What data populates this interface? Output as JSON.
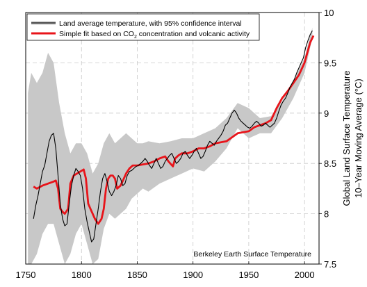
{
  "chart_data": {
    "type": "line",
    "title": "",
    "xlabel": "",
    "ylabel": "Global Land Surface Temperature",
    "ylabel2": "10–Year Moving Average (°C)",
    "xlim": [
      1750,
      2013
    ],
    "ylim": [
      7.5,
      10
    ],
    "x_ticks": [
      1750,
      1800,
      1850,
      1900,
      1950,
      2000
    ],
    "y_ticks": [
      7.5,
      8,
      8.5,
      9,
      9.5,
      10
    ],
    "x_tick_labels": [
      "1750",
      "1800",
      "1850",
      "1900",
      "1950",
      "2000"
    ],
    "y_tick_labels": [
      "7.5",
      "8",
      "8.5",
      "9",
      "9.5",
      "10"
    ],
    "grid": true,
    "legend_position": "top-left",
    "annotation": "Berkeley Earth Surface Temperature",
    "legend": {
      "black_label": "Land average temperature, with 95% confidence interval",
      "red_label_prefix": "Simple fit based on CO",
      "red_label_sub": "2",
      "red_label_suffix": " concentration and volcanic activity"
    },
    "colors": {
      "average": "#000000",
      "band": "#c8c8c8",
      "fit": "#e8141a",
      "grid": "#c8c8c8"
    },
    "series": [
      {
        "key": "average",
        "x": [
          1757,
          1759,
          1761,
          1763,
          1765,
          1767,
          1769,
          1771,
          1773,
          1775,
          1777,
          1779,
          1781,
          1783,
          1785,
          1787,
          1789,
          1791,
          1793,
          1795,
          1797,
          1799,
          1801,
          1803,
          1805,
          1807,
          1809,
          1811,
          1813,
          1815,
          1817,
          1819,
          1821,
          1823,
          1825,
          1827,
          1829,
          1831,
          1833,
          1835,
          1837,
          1839,
          1841,
          1843,
          1845,
          1847,
          1849,
          1851,
          1853,
          1855,
          1857,
          1859,
          1861,
          1863,
          1865,
          1867,
          1869,
          1871,
          1873,
          1875,
          1877,
          1879,
          1881,
          1883,
          1885,
          1887,
          1889,
          1891,
          1893,
          1895,
          1897,
          1899,
          1901,
          1903,
          1905,
          1907,
          1909,
          1911,
          1913,
          1915,
          1917,
          1919,
          1921,
          1923,
          1925,
          1927,
          1929,
          1931,
          1933,
          1935,
          1937,
          1939,
          1941,
          1943,
          1945,
          1947,
          1949,
          1951,
          1953,
          1955,
          1957,
          1959,
          1961,
          1963,
          1965,
          1967,
          1969,
          1971,
          1973,
          1975,
          1977,
          1979,
          1981,
          1983,
          1985,
          1987,
          1989,
          1991,
          1993,
          1995,
          1997,
          1999,
          2001,
          2003,
          2005,
          2007
        ],
        "y": [
          7.95,
          8.08,
          8.18,
          8.3,
          8.42,
          8.48,
          8.6,
          8.72,
          8.78,
          8.8,
          8.65,
          8.38,
          8.1,
          7.95,
          7.88,
          7.9,
          8.1,
          8.28,
          8.38,
          8.45,
          8.42,
          8.38,
          8.25,
          8.05,
          7.92,
          7.82,
          7.72,
          7.75,
          7.9,
          8.05,
          8.22,
          8.35,
          8.4,
          8.32,
          8.22,
          8.18,
          8.22,
          8.28,
          8.38,
          8.35,
          8.28,
          8.3,
          8.38,
          8.42,
          8.43,
          8.45,
          8.47,
          8.48,
          8.5,
          8.52,
          8.55,
          8.52,
          8.48,
          8.45,
          8.5,
          8.55,
          8.5,
          8.45,
          8.47,
          8.52,
          8.55,
          8.58,
          8.6,
          8.55,
          8.5,
          8.52,
          8.55,
          8.6,
          8.62,
          8.58,
          8.55,
          8.58,
          8.62,
          8.65,
          8.6,
          8.55,
          8.57,
          8.62,
          8.68,
          8.72,
          8.7,
          8.68,
          8.72,
          8.75,
          8.78,
          8.82,
          8.88,
          8.9,
          8.95,
          9.0,
          9.03,
          9.0,
          8.95,
          8.92,
          8.9,
          8.88,
          8.86,
          8.85,
          8.87,
          8.9,
          8.92,
          8.9,
          8.87,
          8.88,
          8.9,
          8.88,
          8.86,
          8.88,
          8.9,
          8.95,
          9.02,
          9.08,
          9.12,
          9.15,
          9.2,
          9.26,
          9.3,
          9.34,
          9.4,
          9.45,
          9.5,
          9.55,
          9.65,
          9.72,
          9.78,
          9.82
        ]
      },
      {
        "key": "band",
        "x": [
          1752,
          1755,
          1760,
          1765,
          1770,
          1775,
          1780,
          1785,
          1790,
          1795,
          1800,
          1805,
          1810,
          1815,
          1820,
          1825,
          1830,
          1835,
          1840,
          1845,
          1850,
          1855,
          1860,
          1870,
          1880,
          1890,
          1900,
          1910,
          1920,
          1930,
          1940,
          1950,
          1960,
          1970,
          1980,
          1990,
          2000,
          2007
        ],
        "upper": [
          9.2,
          9.4,
          9.3,
          9.4,
          9.6,
          9.5,
          9.1,
          8.8,
          8.6,
          8.7,
          8.7,
          8.6,
          8.4,
          8.5,
          8.7,
          8.8,
          8.7,
          8.75,
          8.8,
          8.75,
          8.7,
          8.7,
          8.72,
          8.7,
          8.72,
          8.75,
          8.75,
          8.8,
          8.85,
          8.95,
          9.1,
          9.05,
          8.95,
          8.97,
          9.12,
          9.32,
          9.55,
          9.85
        ],
        "lower": [
          7.5,
          7.5,
          7.6,
          7.8,
          7.9,
          7.9,
          7.7,
          7.5,
          7.6,
          7.8,
          7.9,
          7.7,
          7.5,
          7.55,
          7.85,
          8.0,
          7.95,
          8.0,
          8.05,
          8.15,
          8.2,
          8.25,
          8.22,
          8.3,
          8.35,
          8.4,
          8.45,
          8.42,
          8.52,
          8.65,
          8.85,
          8.75,
          8.8,
          8.8,
          8.95,
          9.15,
          9.4,
          9.75
        ]
      },
      {
        "key": "fit",
        "x": [
          1757,
          1760,
          1765,
          1770,
          1775,
          1777,
          1779,
          1781,
          1783,
          1785,
          1788,
          1790,
          1793,
          1796,
          1799,
          1802,
          1804,
          1806,
          1808,
          1810,
          1812,
          1815,
          1818,
          1820,
          1822,
          1824,
          1826,
          1828,
          1830,
          1832,
          1835,
          1838,
          1840,
          1843,
          1846,
          1850,
          1855,
          1860,
          1865,
          1870,
          1875,
          1878,
          1882,
          1884,
          1887,
          1890,
          1895,
          1900,
          1905,
          1910,
          1915,
          1920,
          1925,
          1930,
          1935,
          1940,
          1945,
          1950,
          1955,
          1960,
          1965,
          1970,
          1975,
          1980,
          1985,
          1990,
          1995,
          2000,
          2005,
          2008
        ],
        "y": [
          8.27,
          8.25,
          8.28,
          8.3,
          8.32,
          8.33,
          8.25,
          8.05,
          8.02,
          8.0,
          8.05,
          8.3,
          8.38,
          8.4,
          8.42,
          8.44,
          8.35,
          8.1,
          8.05,
          8.0,
          7.95,
          7.9,
          7.95,
          8.05,
          8.25,
          8.35,
          8.38,
          8.38,
          8.35,
          8.25,
          8.28,
          8.35,
          8.4,
          8.45,
          8.48,
          8.48,
          8.49,
          8.5,
          8.52,
          8.55,
          8.57,
          8.52,
          8.47,
          8.55,
          8.58,
          8.6,
          8.6,
          8.62,
          8.65,
          8.65,
          8.67,
          8.7,
          8.71,
          8.72,
          8.76,
          8.8,
          8.81,
          8.82,
          8.86,
          8.88,
          8.9,
          8.93,
          9.05,
          9.15,
          9.22,
          9.3,
          9.38,
          9.5,
          9.7,
          9.77
        ]
      }
    ]
  }
}
